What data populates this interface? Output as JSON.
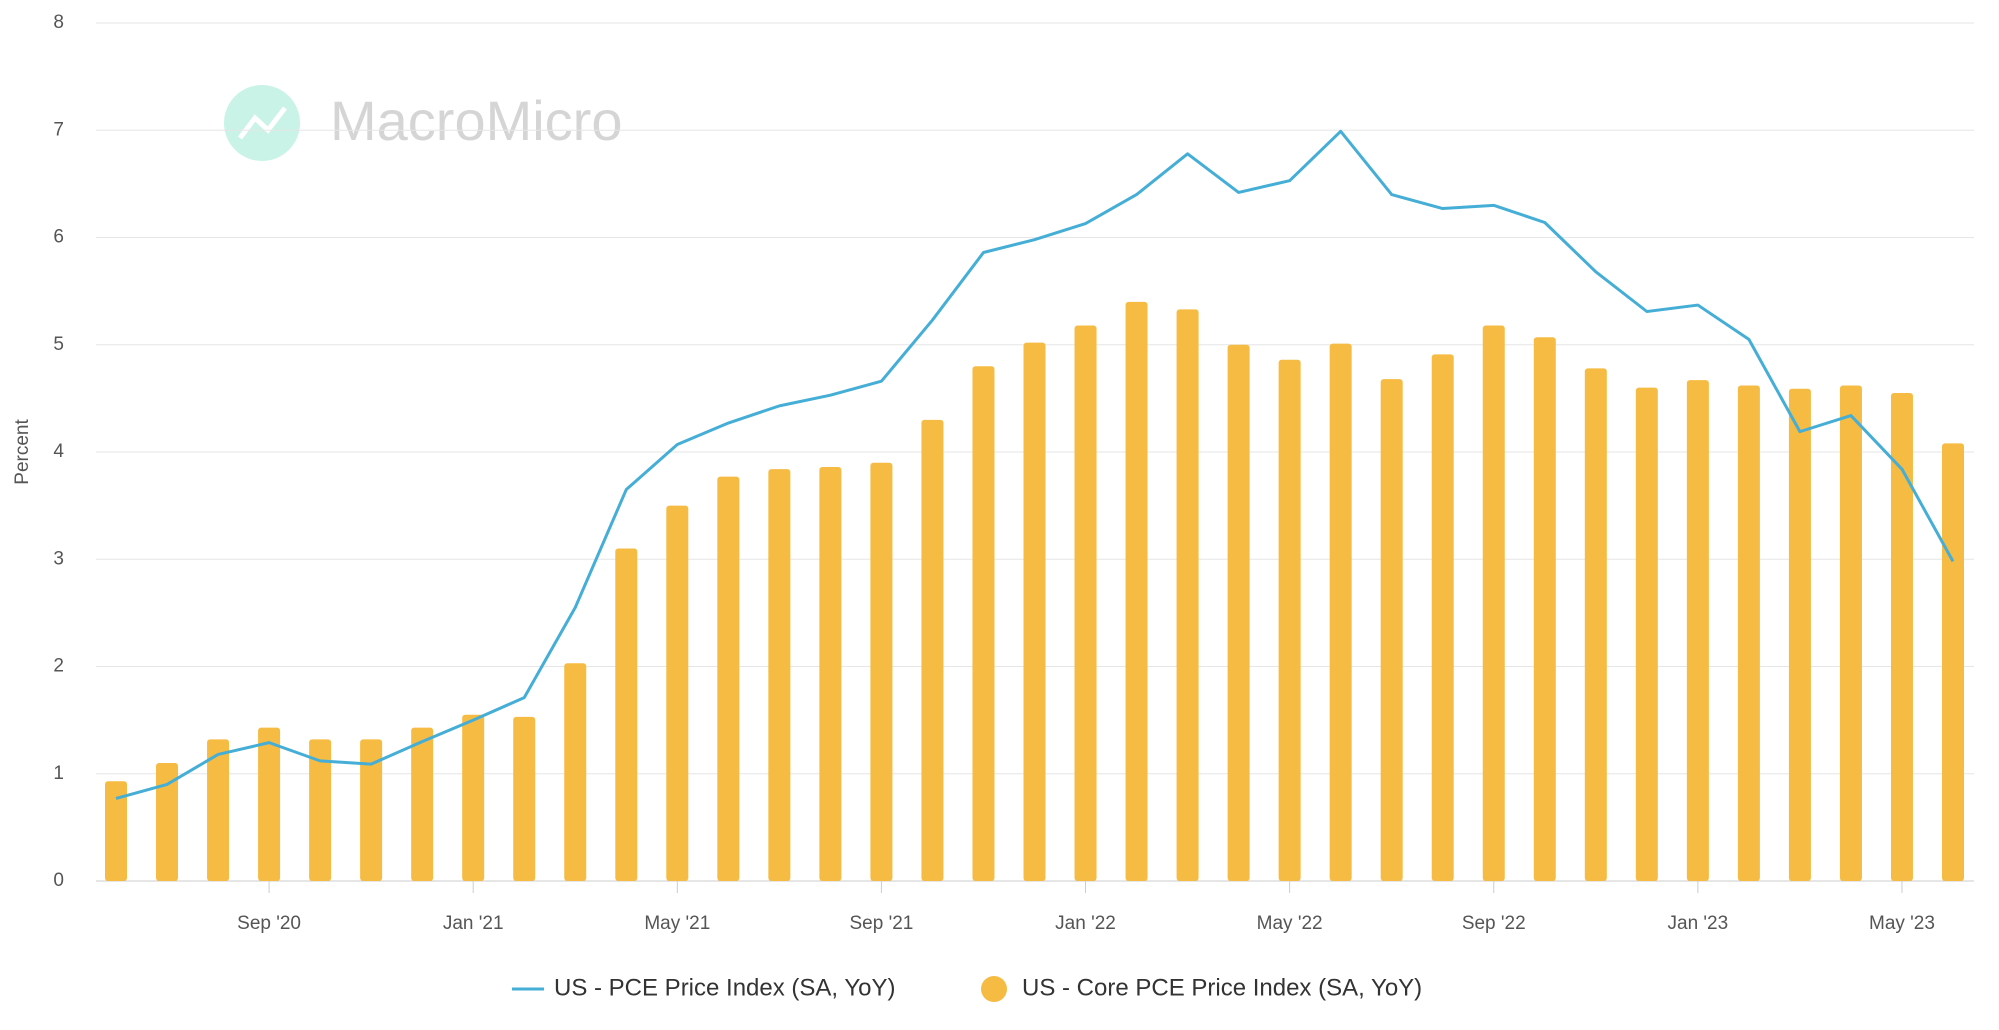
{
  "chart_data": {
    "type": "bar-line",
    "watermark": "MacroMicro",
    "y_label": "Percent",
    "categories": [
      null,
      null,
      null,
      "Sep '20",
      null,
      null,
      null,
      "Jan '21",
      null,
      null,
      null,
      "May '21",
      null,
      null,
      null,
      "Sep '21",
      null,
      null,
      null,
      "Jan '22",
      null,
      null,
      null,
      "May '22",
      null,
      null,
      null,
      "Sep '22",
      null,
      null,
      null,
      "Jan '23",
      null,
      null,
      null,
      "May '23",
      null
    ],
    "series": [
      {
        "name": "US - PCE Price Index (SA, YoY)",
        "type": "line",
        "color": "#45aed6",
        "values": [
          0.77,
          0.9,
          1.18,
          1.29,
          1.12,
          1.09,
          1.3,
          1.5,
          1.71,
          2.55,
          3.65,
          4.07,
          4.27,
          4.43,
          4.53,
          4.66,
          5.23,
          5.86,
          5.98,
          6.13,
          6.4,
          6.78,
          6.42,
          6.53,
          6.99,
          6.4,
          6.27,
          6.3,
          6.14,
          5.68,
          5.31,
          5.37,
          5.05,
          4.19,
          4.34,
          3.84,
          2.98
        ]
      },
      {
        "name": "US - Core PCE Price Index (SA, YoY)",
        "type": "bar",
        "color": "#f6bb42",
        "values": [
          0.93,
          1.1,
          1.32,
          1.43,
          1.32,
          1.32,
          1.43,
          1.55,
          1.53,
          2.03,
          3.1,
          3.5,
          3.77,
          3.84,
          3.86,
          3.9,
          4.3,
          4.8,
          5.02,
          5.18,
          5.4,
          5.33,
          5.0,
          4.86,
          5.01,
          4.68,
          4.91,
          5.18,
          5.07,
          4.78,
          4.6,
          4.67,
          4.62,
          4.59,
          4.62,
          4.55,
          4.08
        ]
      }
    ],
    "ylim": [
      0,
      8
    ],
    "yticks": [
      0,
      1,
      2,
      3,
      4,
      5,
      6,
      7,
      8
    ],
    "grid": true
  }
}
